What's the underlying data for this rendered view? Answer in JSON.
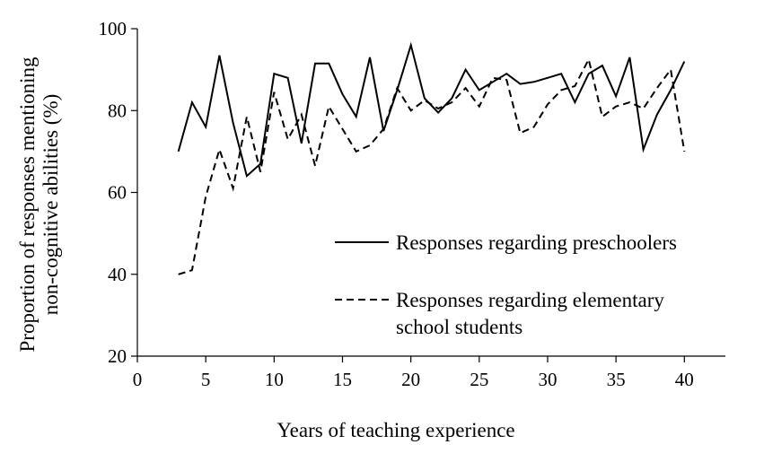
{
  "chart_data": {
    "type": "line",
    "xlabel": "Years of teaching experience",
    "ylabel_lines": [
      "Proportion of responses mentioning",
      "non-cognitive abilities (%)"
    ],
    "xlim": [
      0,
      43
    ],
    "ylim": [
      20,
      100
    ],
    "xticks": [
      0,
      5,
      10,
      15,
      20,
      25,
      30,
      35,
      40
    ],
    "yticks": [
      20,
      40,
      60,
      80,
      100
    ],
    "grid": false,
    "legend_position": "center-right",
    "series": [
      {
        "name": "Responses regarding preschoolers",
        "legend_lines": [
          "Responses regarding preschoolers"
        ],
        "style": "solid",
        "color": "#000000",
        "x": [
          3,
          4,
          5,
          6,
          7,
          8,
          9,
          10,
          11,
          12,
          13,
          14,
          15,
          16,
          17,
          18,
          19,
          20,
          21,
          22,
          23,
          24,
          25,
          26,
          27,
          28,
          29,
          30,
          31,
          32,
          33,
          34,
          35,
          36,
          37,
          38,
          39,
          40
        ],
        "y": [
          70,
          82,
          76,
          93.5,
          77,
          64,
          67,
          89,
          88,
          72,
          91.5,
          91.5,
          84,
          78.5,
          93,
          75,
          85,
          96,
          83,
          79.5,
          83,
          90,
          85,
          87,
          89,
          86.5,
          87,
          88,
          89,
          82,
          89,
          91,
          83.5,
          93,
          70.5,
          79,
          85,
          92
        ]
      },
      {
        "name": "Responses regarding elementary school students",
        "legend_lines": [
          "Responses regarding elementary",
          "school students"
        ],
        "style": "dashed",
        "color": "#000000",
        "x": [
          3,
          4,
          5,
          6,
          7,
          8,
          9,
          10,
          11,
          12,
          13,
          14,
          15,
          16,
          17,
          18,
          19,
          20,
          21,
          22,
          23,
          24,
          25,
          26,
          27,
          28,
          29,
          30,
          31,
          32,
          33,
          34,
          35,
          36,
          37,
          38,
          39,
          40
        ],
        "y": [
          40,
          41,
          59,
          70.5,
          61,
          78.5,
          65,
          84.5,
          73,
          79,
          66.5,
          81,
          75.5,
          70,
          71.5,
          75.5,
          85.5,
          80,
          82.5,
          80.5,
          82,
          85.5,
          81,
          88,
          87.5,
          74.5,
          76,
          81.5,
          85,
          86,
          92.5,
          78.5,
          81,
          82,
          80.5,
          85.5,
          90,
          70
        ]
      }
    ]
  }
}
